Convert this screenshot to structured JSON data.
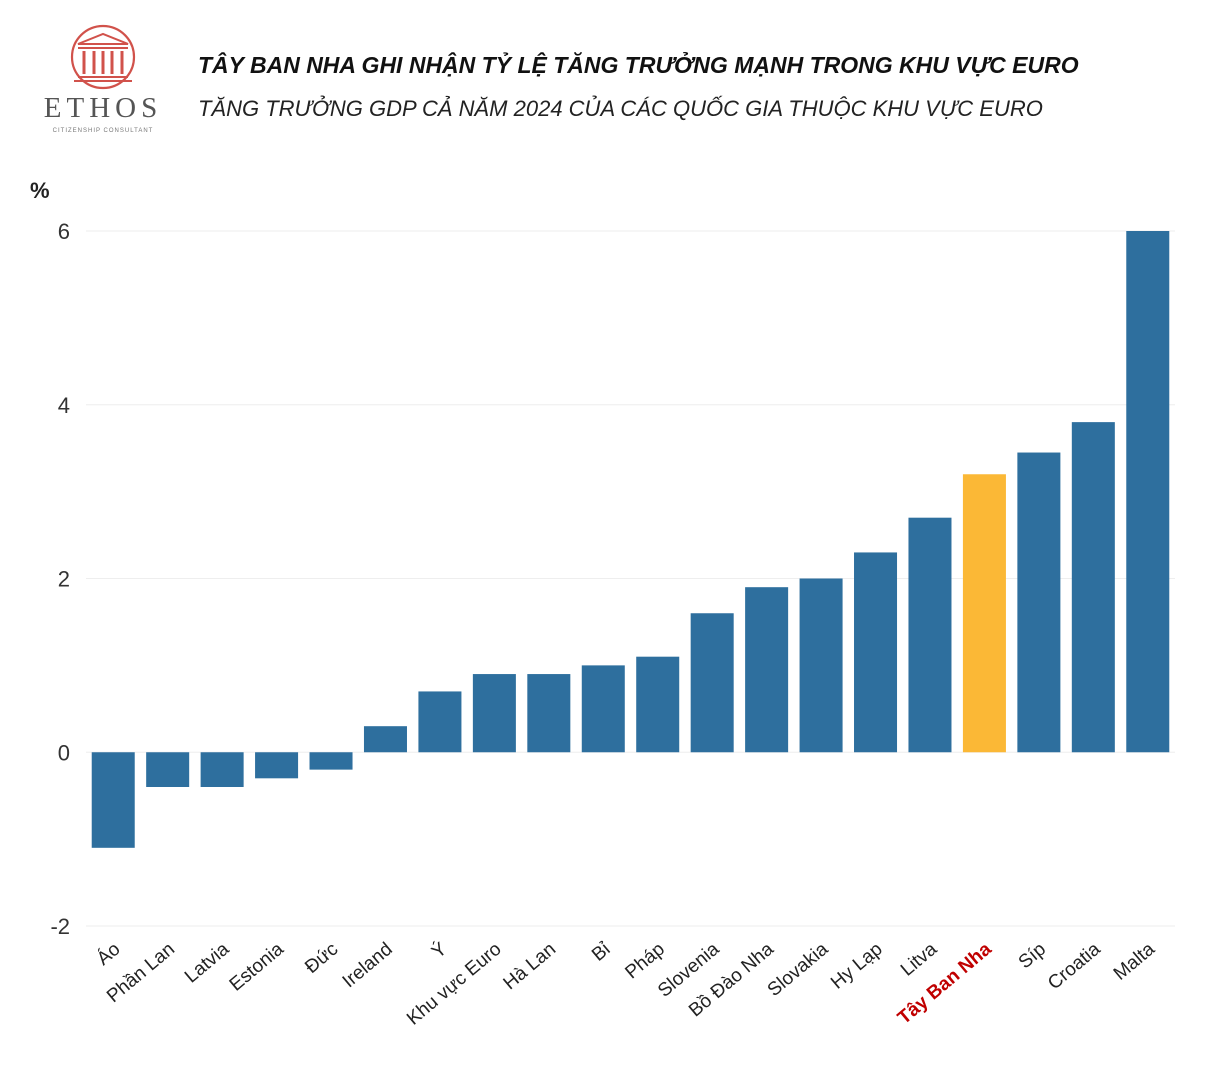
{
  "logo": {
    "word": "ETHOS",
    "tagline": "CITIZENSHIP CONSULTANT"
  },
  "header": {
    "title": "TÂY BAN NHA GHI NHẬN TỶ LỆ TĂNG TRƯỞNG MẠNH TRONG KHU VỰC EURO",
    "subtitle": "TĂNG TRƯỞNG GDP CẢ NĂM 2024 CỦA CÁC QUỐC GIA THUỘC KHU VỰC EURO"
  },
  "colors": {
    "bar": "#2e6f9e",
    "highlight_bar": "#fbb836",
    "highlight_label": "#c00000",
    "logo": "#d1524b"
  },
  "chart_data": {
    "type": "bar",
    "title": "TÂY BAN NHA GHI NHẬN TỶ LỆ TĂNG TRƯỞNG MẠNH TRONG KHU VỰC EURO",
    "subtitle": "TĂNG TRƯỞNG GDP CẢ NĂM 2024 CỦA CÁC QUỐC GIA THUỘC KHU VỰC EURO",
    "ylabel": "%",
    "xlabel": "",
    "ylim": [
      -2,
      6
    ],
    "yticks": [
      -2,
      0,
      2,
      4,
      6
    ],
    "grid": true,
    "highlight": "Tây Ban Nha",
    "categories": [
      "Áo",
      "Phần Lan",
      "Latvia",
      "Estonia",
      "Đức",
      "Ireland",
      "Ý",
      "Khu vực Euro",
      "Hà Lan",
      "Bỉ",
      "Pháp",
      "Slovenia",
      "Bồ Đào Nha",
      "Slovakia",
      "Hy Lạp",
      "Litva",
      "Tây Ban Nha",
      "Síp",
      "Croatia",
      "Malta"
    ],
    "values": [
      -1.1,
      -0.4,
      -0.4,
      -0.3,
      -0.2,
      0.3,
      0.7,
      0.9,
      0.9,
      1.0,
      1.1,
      1.6,
      1.9,
      2.0,
      2.3,
      2.7,
      3.2,
      3.45,
      3.8,
      6.0
    ]
  }
}
